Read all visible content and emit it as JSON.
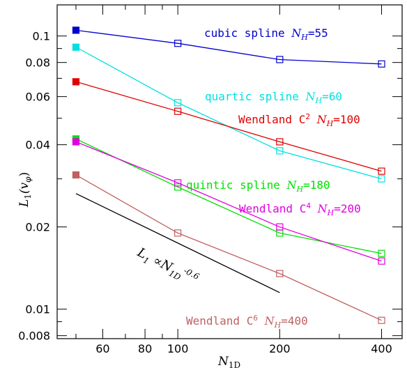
{
  "chart_data": {
    "type": "line",
    "xscale": "log",
    "yscale": "log",
    "xlim": [
      44,
      460
    ],
    "ylim": [
      0.0078,
      0.13
    ],
    "xticks_major": [
      60,
      80,
      100,
      200,
      400
    ],
    "xtick_labels": [
      "60",
      "80",
      "100",
      "200",
      "400"
    ],
    "yticks_major": [
      0.008,
      0.01,
      0.02,
      0.04,
      0.06,
      0.08,
      0.1
    ],
    "ytick_labels": [
      "0.008",
      "0.01",
      "0.02",
      "0.04",
      "0.06",
      "0.08",
      "0.1"
    ],
    "xlabel": {
      "main": "N",
      "sub": "1D"
    },
    "ylabel": {
      "main": "L",
      "sub": "1",
      "paren": "(v",
      "sub2": "φ",
      "close": ")"
    },
    "x": [
      50,
      100,
      200,
      400
    ],
    "series": [
      {
        "name_parts": [
          "cubic spline ",
          "N",
          "H",
          "=55"
        ],
        "color": "#0000d0",
        "values": [
          0.105,
          0.094,
          0.082,
          0.079
        ]
      },
      {
        "name_parts": [
          "quartic spline ",
          "N",
          "H",
          "=60"
        ],
        "color": "#00e0e0",
        "values": [
          0.091,
          0.057,
          0.038,
          0.03
        ]
      },
      {
        "name_parts": [
          "Wendland C",
          "2",
          " ",
          "N",
          "H",
          "=100"
        ],
        "color": "#e00000",
        "values": [
          0.068,
          0.053,
          0.041,
          0.032
        ]
      },
      {
        "name_parts": [
          "quintic spline ",
          "N",
          "H",
          "=180"
        ],
        "color": "#00e000",
        "values": [
          0.042,
          0.028,
          0.019,
          0.016
        ]
      },
      {
        "name_parts": [
          "Wendland C",
          "4",
          " ",
          "N",
          "H",
          "=200"
        ],
        "color": "#e000e0",
        "values": [
          0.041,
          0.029,
          0.02,
          0.015
        ]
      },
      {
        "name_parts": [
          "Wendland C",
          "6",
          " ",
          "N",
          "H",
          "=400"
        ],
        "color": "#c06060",
        "values": [
          0.031,
          0.019,
          0.0135,
          0.0091
        ]
      }
    ],
    "reference_line": {
      "label_parts": [
        "L",
        "1",
        " ∝",
        "N",
        "1D",
        "-0.6"
      ],
      "color": "#000000",
      "x": [
        50,
        200
      ],
      "y": [
        0.0265,
        0.0115
      ]
    }
  }
}
